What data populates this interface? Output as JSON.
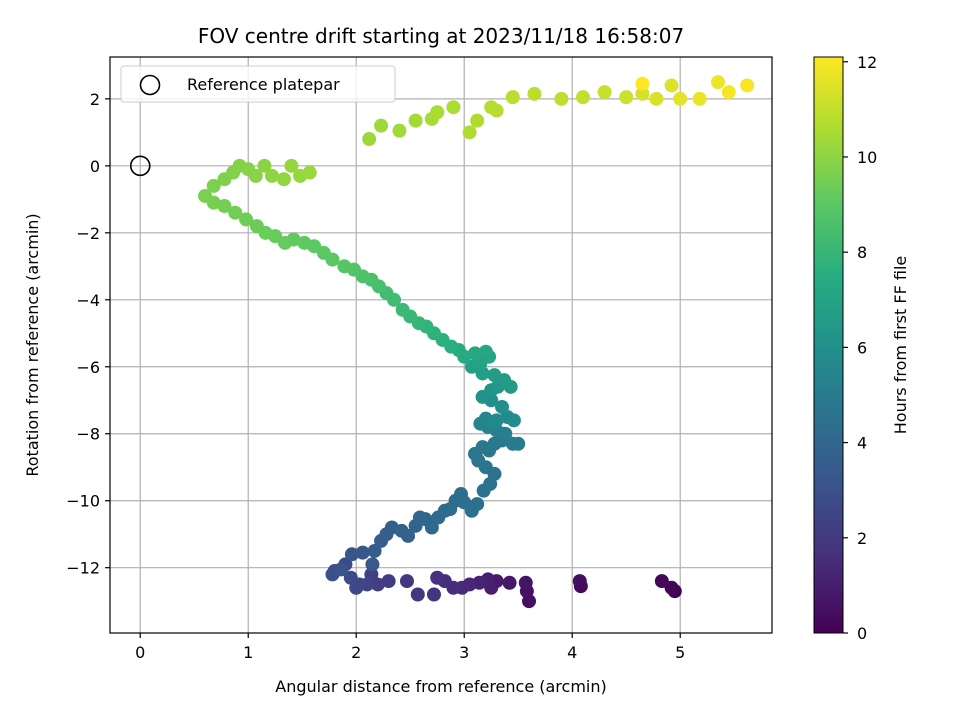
{
  "chart_data": {
    "type": "scatter",
    "title": "FOV centre drift starting at 2023/11/18 16:58:07",
    "xlabel": "Angular distance from reference (arcmin)",
    "ylabel": "Rotation from reference (arcmin)",
    "xlim": [
      -0.28,
      5.85
    ],
    "ylim": [
      -13.95,
      3.25
    ],
    "xticks": [
      0,
      1,
      2,
      3,
      4,
      5
    ],
    "yticks": [
      -12,
      -10,
      -8,
      -6,
      -4,
      -2,
      0,
      2
    ],
    "grid": true,
    "colormap": "viridis",
    "colorbar": {
      "label": "Hours from first FF file",
      "range": [
        0,
        12.1
      ],
      "ticks": [
        0,
        2,
        4,
        6,
        8,
        10,
        12
      ]
    },
    "legend": {
      "placement": "top-left",
      "entries": [
        {
          "label": "Reference platepar",
          "marker": "open-circle",
          "x": 0,
          "y": 0
        }
      ]
    },
    "series": [
      {
        "columns": [
          "x",
          "y",
          "hours"
        ],
        "points": [
          [
            4.95,
            -12.7,
            0.0
          ],
          [
            4.92,
            -12.6,
            0.1
          ],
          [
            4.83,
            -12.4,
            0.2
          ],
          [
            4.08,
            -12.55,
            0.3
          ],
          [
            4.07,
            -12.4,
            0.4
          ],
          [
            3.6,
            -13.0,
            0.5
          ],
          [
            3.58,
            -12.7,
            0.6
          ],
          [
            3.57,
            -12.45,
            0.7
          ],
          [
            3.42,
            -12.45,
            0.8
          ],
          [
            3.3,
            -12.4,
            0.9
          ],
          [
            3.25,
            -12.6,
            1.0
          ],
          [
            3.22,
            -12.35,
            1.1
          ],
          [
            3.14,
            -12.45,
            1.2
          ],
          [
            3.05,
            -12.5,
            1.3
          ],
          [
            2.98,
            -12.6,
            1.4
          ],
          [
            2.9,
            -12.6,
            1.5
          ],
          [
            2.82,
            -12.4,
            1.6
          ],
          [
            2.75,
            -12.3,
            1.7
          ],
          [
            2.72,
            -12.8,
            1.8
          ],
          [
            2.57,
            -12.8,
            1.9
          ],
          [
            2.47,
            -12.4,
            2.0
          ],
          [
            2.3,
            -12.4,
            2.1
          ],
          [
            2.2,
            -12.5,
            2.2
          ],
          [
            2.14,
            -12.2,
            2.3
          ],
          [
            2.1,
            -12.5,
            2.4
          ],
          [
            2.03,
            -12.5,
            2.5
          ],
          [
            2.0,
            -12.6,
            2.6
          ],
          [
            1.95,
            -12.3,
            2.7
          ],
          [
            1.9,
            -11.9,
            2.8
          ],
          [
            1.8,
            -12.1,
            2.9
          ],
          [
            1.78,
            -12.2,
            3.0
          ],
          [
            1.86,
            -12.05,
            3.1
          ],
          [
            1.96,
            -11.6,
            3.2
          ],
          [
            2.06,
            -11.55,
            3.3
          ],
          [
            2.15,
            -11.9,
            3.4
          ],
          [
            2.17,
            -11.5,
            3.5
          ],
          [
            2.23,
            -11.2,
            3.6
          ],
          [
            2.28,
            -11.0,
            3.7
          ],
          [
            2.33,
            -10.8,
            3.75
          ],
          [
            2.42,
            -10.9,
            3.8
          ],
          [
            2.48,
            -11.05,
            3.85
          ],
          [
            2.55,
            -10.75,
            3.9
          ],
          [
            2.59,
            -10.5,
            3.95
          ],
          [
            2.64,
            -10.55,
            4.0
          ],
          [
            2.7,
            -10.8,
            4.05
          ],
          [
            2.76,
            -10.5,
            4.1
          ],
          [
            2.82,
            -10.3,
            4.15
          ],
          [
            2.87,
            -10.25,
            4.2
          ],
          [
            2.92,
            -10.0,
            4.25
          ],
          [
            2.97,
            -9.8,
            4.3
          ],
          [
            3.0,
            -10.05,
            4.35
          ],
          [
            3.07,
            -10.3,
            4.4
          ],
          [
            3.12,
            -10.1,
            4.45
          ],
          [
            3.18,
            -9.7,
            4.5
          ],
          [
            3.24,
            -9.5,
            4.55
          ],
          [
            3.28,
            -9.2,
            4.6
          ],
          [
            3.2,
            -9.0,
            4.65
          ],
          [
            3.13,
            -8.8,
            4.7
          ],
          [
            3.1,
            -8.6,
            4.75
          ],
          [
            3.17,
            -8.4,
            4.8
          ],
          [
            3.23,
            -8.5,
            4.85
          ],
          [
            3.28,
            -8.3,
            4.9
          ],
          [
            3.35,
            -8.2,
            4.95
          ],
          [
            3.45,
            -8.3,
            5.0
          ],
          [
            3.5,
            -8.3,
            5.05
          ],
          [
            3.38,
            -8.0,
            5.15
          ],
          [
            3.3,
            -7.9,
            5.25
          ],
          [
            3.22,
            -7.8,
            5.35
          ],
          [
            3.15,
            -7.7,
            5.45
          ],
          [
            3.2,
            -7.55,
            5.55
          ],
          [
            3.3,
            -7.6,
            5.65
          ],
          [
            3.4,
            -7.5,
            5.75
          ],
          [
            3.46,
            -7.6,
            5.85
          ],
          [
            3.35,
            -7.2,
            5.95
          ],
          [
            3.25,
            -7.0,
            6.05
          ],
          [
            3.17,
            -6.9,
            6.15
          ],
          [
            3.25,
            -6.7,
            6.25
          ],
          [
            3.31,
            -6.6,
            6.35
          ],
          [
            3.37,
            -6.4,
            6.45
          ],
          [
            3.43,
            -6.6,
            6.55
          ],
          [
            3.28,
            -6.25,
            6.65
          ],
          [
            3.17,
            -6.2,
            6.75
          ],
          [
            3.07,
            -6.0,
            6.85
          ],
          [
            3.15,
            -5.9,
            6.95
          ],
          [
            3.23,
            -5.7,
            7.05
          ],
          [
            3.2,
            -5.55,
            7.15
          ],
          [
            3.1,
            -5.6,
            7.25
          ],
          [
            3.0,
            -5.7,
            7.35
          ],
          [
            2.95,
            -5.5,
            7.45
          ],
          [
            2.88,
            -5.4,
            7.55
          ],
          [
            2.8,
            -5.2,
            7.65
          ],
          [
            2.72,
            -5.0,
            7.75
          ],
          [
            2.65,
            -4.8,
            7.85
          ],
          [
            2.58,
            -4.7,
            7.95
          ],
          [
            2.5,
            -4.5,
            8.05
          ],
          [
            2.43,
            -4.3,
            8.15
          ],
          [
            2.35,
            -4.0,
            8.25
          ],
          [
            2.28,
            -3.8,
            8.35
          ],
          [
            2.21,
            -3.6,
            8.45
          ],
          [
            2.14,
            -3.4,
            8.55
          ],
          [
            2.06,
            -3.3,
            8.65
          ],
          [
            1.98,
            -3.1,
            8.75
          ],
          [
            1.89,
            -3.0,
            8.85
          ],
          [
            1.78,
            -2.8,
            8.95
          ],
          [
            1.7,
            -2.6,
            9.0
          ],
          [
            1.61,
            -2.4,
            9.05
          ],
          [
            1.52,
            -2.3,
            9.1
          ],
          [
            1.42,
            -2.2,
            9.15
          ],
          [
            1.34,
            -2.3,
            9.2
          ],
          [
            1.25,
            -2.1,
            9.25
          ],
          [
            1.16,
            -2.0,
            9.3
          ],
          [
            1.08,
            -1.8,
            9.35
          ],
          [
            0.98,
            -1.6,
            9.4
          ],
          [
            0.88,
            -1.4,
            9.45
          ],
          [
            0.78,
            -1.2,
            9.5
          ],
          [
            0.68,
            -1.1,
            9.55
          ],
          [
            0.6,
            -0.9,
            9.6
          ],
          [
            0.68,
            -0.6,
            9.65
          ],
          [
            0.78,
            -0.4,
            9.7
          ],
          [
            0.86,
            -0.2,
            9.75
          ],
          [
            0.92,
            0.0,
            9.8
          ],
          [
            1.0,
            -0.1,
            9.85
          ],
          [
            1.07,
            -0.3,
            9.9
          ],
          [
            1.15,
            0.0,
            9.95
          ],
          [
            1.22,
            -0.3,
            10.0
          ],
          [
            1.33,
            -0.4,
            10.05
          ],
          [
            1.4,
            0.0,
            10.1
          ],
          [
            1.48,
            -0.3,
            10.15
          ],
          [
            1.57,
            -0.2,
            10.2
          ],
          [
            2.12,
            0.8,
            10.25
          ],
          [
            2.23,
            1.2,
            10.3
          ],
          [
            2.4,
            1.05,
            10.35
          ],
          [
            2.55,
            1.35,
            10.4
          ],
          [
            2.7,
            1.4,
            10.45
          ],
          [
            2.75,
            1.6,
            10.5
          ],
          [
            2.9,
            1.75,
            10.55
          ],
          [
            3.05,
            1.0,
            10.6
          ],
          [
            3.12,
            1.35,
            10.65
          ],
          [
            3.25,
            1.75,
            10.7
          ],
          [
            3.3,
            1.65,
            10.75
          ],
          [
            3.45,
            2.05,
            10.8
          ],
          [
            3.65,
            2.15,
            10.85
          ],
          [
            3.9,
            2.0,
            10.9
          ],
          [
            4.1,
            2.05,
            11.0
          ],
          [
            4.3,
            2.2,
            11.1
          ],
          [
            4.5,
            2.05,
            11.2
          ],
          [
            4.65,
            2.15,
            11.3
          ],
          [
            4.78,
            2.0,
            11.4
          ],
          [
            4.92,
            2.4,
            11.5
          ],
          [
            5.0,
            2.0,
            11.6
          ],
          [
            5.18,
            2.0,
            11.7
          ],
          [
            5.35,
            2.5,
            11.8
          ],
          [
            5.45,
            2.2,
            11.9
          ],
          [
            5.62,
            2.4,
            12.0
          ],
          [
            4.65,
            2.45,
            12.1
          ]
        ]
      }
    ]
  }
}
